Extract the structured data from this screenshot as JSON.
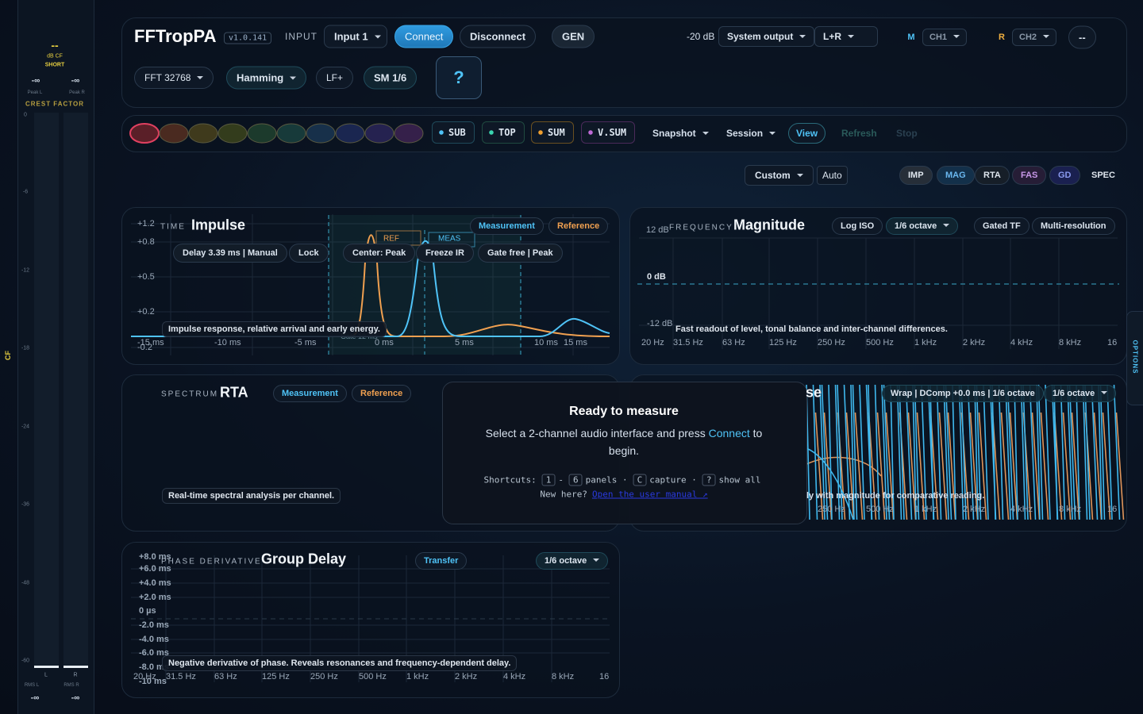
{
  "meter": {
    "top": "--",
    "cf_unit": "dB CF",
    "short": "SHORT",
    "peak_l": "-∞",
    "peak_r": "-∞",
    "peak_l_label": "Peak L",
    "peak_r_label": "Peak R",
    "crest": "CREST FACTOR",
    "scale": [
      "0",
      "-6",
      "-12",
      "-18",
      "-24",
      "-36",
      "-48",
      "-60"
    ],
    "ch_l": "L",
    "ch_r": "R",
    "rms_l_label": "RMS L",
    "rms_r_label": "RMS R",
    "rms_l": "-∞",
    "rms_r": "-∞",
    "side": "CF"
  },
  "header": {
    "app": "FFTropPA",
    "version": "v1.0.141",
    "input_label": "INPUT",
    "input": "Input 1",
    "connect": "Connect",
    "disconnect": "Disconnect",
    "gen": "GEN",
    "gen_level": "-20 dB",
    "output": "System output",
    "channels": "L+R",
    "m": "M",
    "ch1": "CH1",
    "r": "R",
    "ch2": "CH2",
    "more": "--",
    "fft": "FFT 32768",
    "window": "Hamming",
    "lf": "LF+",
    "sm": "SM 1/6",
    "help": "?"
  },
  "toolbar": {
    "buses": [
      "SUB",
      "TOP",
      "SUM",
      "V.SUM"
    ],
    "snapshot": "Snapshot",
    "session": "Session",
    "view": "View",
    "refresh": "Refresh",
    "stop": "Stop"
  },
  "view_tabs": {
    "custom": "Custom",
    "auto": "Auto",
    "tabs": [
      "IMP",
      "MAG",
      "RTA",
      "FAS",
      "GD",
      "SPEC"
    ]
  },
  "panels": {
    "impulse": {
      "kicker": "TIME",
      "title": "Impulse",
      "buttons": [
        "Measurement",
        "Reference"
      ],
      "chips": [
        "Delay 3.39 ms | Manual",
        "Lock",
        "Center: Peak",
        "Freeze IR",
        "Gate free | Peak"
      ],
      "y_ticks": [
        "+1.2",
        "+0.8",
        "+0.5",
        "+0.2",
        "-0.2"
      ],
      "x_ticks": [
        "-15 ms",
        "-10 ms",
        "-5 ms",
        "0 ms",
        "5 ms",
        "10 ms",
        "15 ms"
      ],
      "ref": "REF",
      "meas": "MEAS",
      "gate": "Gate 12 ms",
      "caption": "Impulse response, relative arrival and early energy."
    },
    "magnitude": {
      "kicker": "FREQUENCY",
      "title": "Magnitude",
      "y_top": "12 dB",
      "y_mid": "0 dB",
      "y_bottom": "-12 dB",
      "buttons": [
        "Log ISO",
        "1/6 octave",
        "Gated TF",
        "Multi-resolution"
      ],
      "caption": "Fast readout of level, tonal balance and inter-channel differences.",
      "x_ticks": [
        "20 Hz",
        "31.5 Hz",
        "63 Hz",
        "125 Hz",
        "250 Hz",
        "500 Hz",
        "1 kHz",
        "2 kHz",
        "4 kHz",
        "8 kHz",
        "16"
      ]
    },
    "rta": {
      "kicker": "SPECTRUM",
      "title": "RTA",
      "buttons": [
        "Measurement",
        "Reference"
      ],
      "caption": "Real-time spectral analysis per channel."
    },
    "phase": {
      "title": "se",
      "buttons": [
        "Wrap | DComp +0.0 ms | 1/6 octave",
        "1/6 octave"
      ],
      "caption": "ly with magnitude for comparative reading.",
      "x_ticks": [
        "250 Hz",
        "500 Hz",
        "1 kHz",
        "2 kHz",
        "4 kHz",
        "8 kHz",
        "16"
      ]
    },
    "group_delay": {
      "kicker": "PHASE DERIVATIVE",
      "title": "Group Delay",
      "buttons": [
        "Transfer",
        "1/6 octave"
      ],
      "y_ticks": [
        "+8.0 ms",
        "+6.0 ms",
        "+4.0 ms",
        "+2.0 ms",
        "0 µs",
        "-2.0 ms",
        "-4.0 ms",
        "-6.0 ms",
        "-8.0 ms",
        "-10 ms"
      ],
      "caption": "Negative derivative of phase. Reveals resonances and frequency-dependent delay.",
      "x_ticks": [
        "20 Hz",
        "31.5 Hz",
        "63 Hz",
        "125 Hz",
        "250 Hz",
        "500 Hz",
        "1 kHz",
        "2 kHz",
        "4 kHz",
        "8 kHz",
        "16"
      ]
    }
  },
  "overlay": {
    "title": "Ready to measure",
    "text_before": "Select a 2-channel audio interface and press ",
    "connect": "Connect",
    "text_after": " to begin.",
    "shortcuts": "Shortcuts:",
    "key_first": "1",
    "key_dash": "-",
    "key_last": "6",
    "panels": "panels ·",
    "key_capture": "C",
    "capture": "capture ·",
    "key_help": "?",
    "show_all": "show all",
    "new_here": "New here?",
    "manual": "Open the user manual ↗"
  },
  "options": "OPTIONS"
}
